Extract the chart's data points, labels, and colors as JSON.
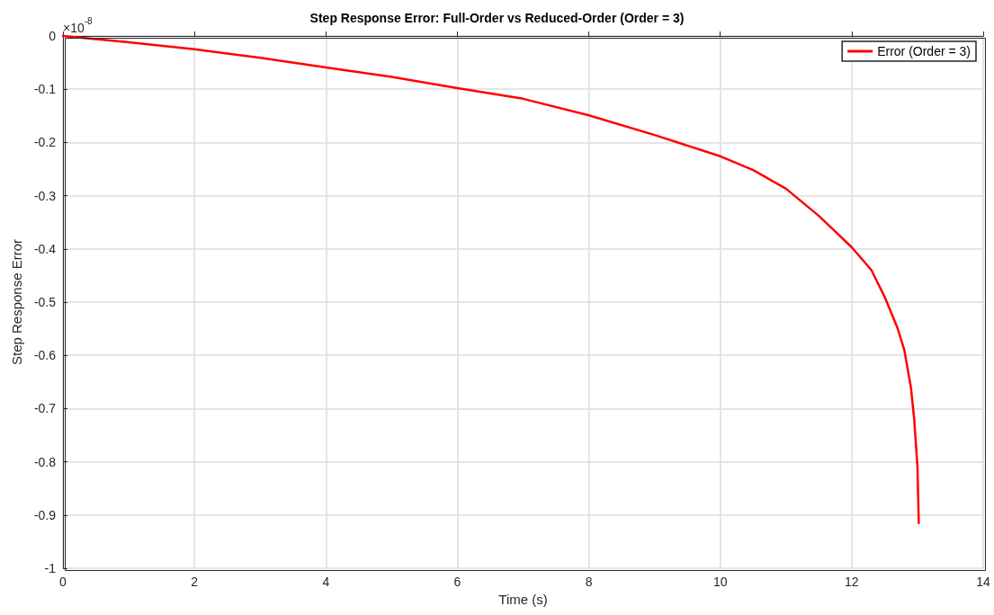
{
  "chart_data": {
    "type": "line",
    "title": "Step Response Error: Full-Order vs Reduced-Order (Order = 3)",
    "xlabel": "Time (s)",
    "ylabel": "Step Response Error",
    "annotations": [
      "×10$^{-8}$"
    ],
    "x": [
      0,
      1,
      2,
      3,
      4,
      5,
      6,
      7,
      8,
      9,
      10,
      10.5,
      11,
      11.5,
      12,
      12.3,
      12.5,
      12.7,
      12.8,
      12.9,
      12.95,
      13,
      13.02
    ],
    "series": [
      {
        "name": "Error (Order = 3)",
        "color": "#ff0000",
        "values": [
          0,
          -0.012,
          -0.025,
          -0.041,
          -0.059,
          -0.077,
          -0.098,
          -0.118,
          -0.149,
          -0.186,
          -0.226,
          -0.252,
          -0.287,
          -0.338,
          -0.397,
          -0.44,
          -0.49,
          -0.55,
          -0.59,
          -0.66,
          -0.72,
          -0.81,
          -0.915
        ]
      }
    ],
    "xlim": [
      0,
      14
    ],
    "xticks": [
      0,
      2,
      4,
      6,
      8,
      10,
      12,
      14
    ],
    "ylim": [
      -1,
      0
    ],
    "yticks": [
      -1,
      -0.9,
      -0.8,
      -0.7,
      -0.6,
      -0.5,
      -0.4,
      -0.3,
      -0.2,
      -0.1,
      0
    ],
    "grid": true,
    "legend": "top right",
    "marker": "none",
    "line_style": "solid"
  }
}
